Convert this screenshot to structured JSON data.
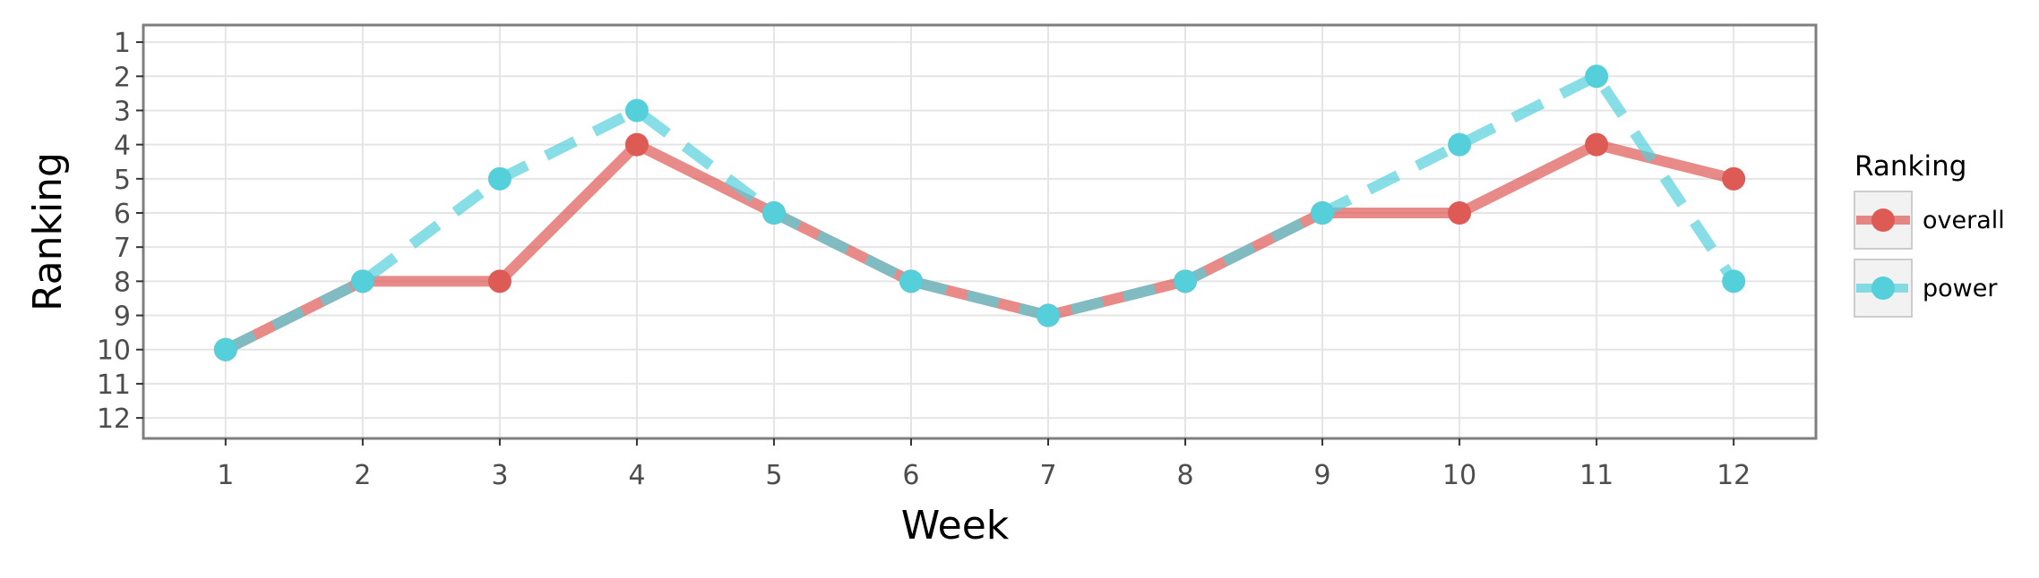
{
  "chart_data": {
    "type": "line",
    "xlabel": "Week",
    "ylabel": "Ranking",
    "x": [
      1,
      2,
      3,
      4,
      5,
      6,
      7,
      8,
      9,
      10,
      11,
      12
    ],
    "xlim": [
      0.4,
      12.6
    ],
    "ylim": [
      12.6,
      0.5
    ],
    "y_reversed": true,
    "x_ticks": [
      1,
      2,
      3,
      4,
      5,
      6,
      7,
      8,
      9,
      10,
      11,
      12
    ],
    "y_ticks": [
      1,
      2,
      3,
      4,
      5,
      6,
      7,
      8,
      9,
      10,
      11,
      12
    ],
    "grid": true,
    "legend": {
      "title": "Ranking",
      "position": "right"
    },
    "series": [
      {
        "name": "overall",
        "color": "#de5a55",
        "line_style": "solid",
        "values": [
          10,
          8,
          8,
          4,
          6,
          8,
          9,
          8,
          6,
          6,
          4,
          5
        ]
      },
      {
        "name": "power",
        "color": "#55d0db",
        "line_style": "dashed",
        "values": [
          10,
          8,
          5,
          3,
          6,
          8,
          9,
          8,
          6,
          4,
          2,
          8
        ]
      }
    ]
  }
}
